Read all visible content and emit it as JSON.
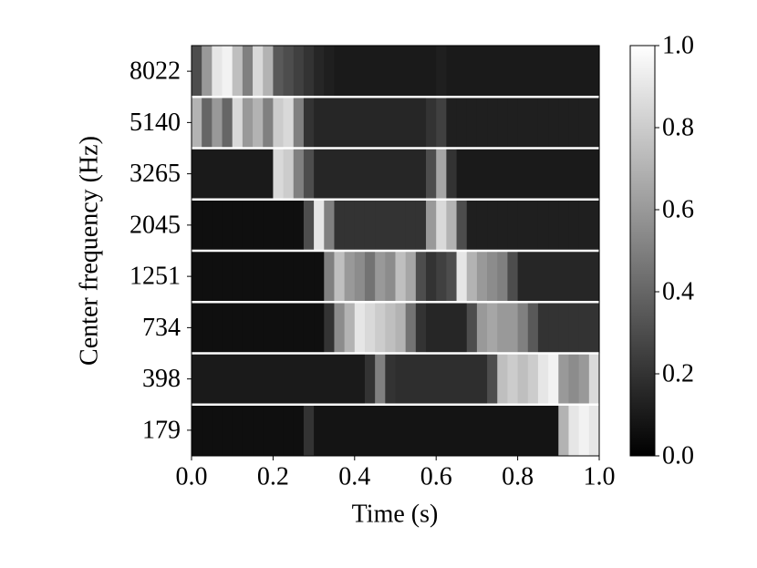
{
  "chart_data": {
    "type": "heatmap",
    "xlabel": "Time (s)",
    "ylabel": "Center frequency (Hz)",
    "categories": [
      "8022",
      "5140",
      "3265",
      "2045",
      "1251",
      "734",
      "398",
      "179"
    ],
    "bins": [
      0,
      0.025,
      0.05,
      0.075,
      0.1,
      0.125,
      0.15,
      0.175,
      0.2,
      0.225,
      0.25,
      0.275,
      0.3,
      0.325,
      0.35,
      0.375,
      0.4,
      0.425,
      0.45,
      0.475,
      0.5,
      0.525,
      0.55,
      0.575,
      0.6,
      0.625,
      0.65,
      0.675,
      0.7,
      0.725,
      0.75,
      0.775,
      0.8,
      0.825,
      0.85,
      0.875,
      0.9,
      0.925,
      0.95,
      0.975,
      1
    ],
    "values": [
      [
        0.3,
        0.6,
        0.9,
        0.95,
        0.75,
        0.5,
        0.85,
        0.7,
        0.35,
        0.3,
        0.25,
        0.2,
        0.15,
        0.12,
        0.1,
        0.1,
        0.1,
        0.1,
        0.1,
        0.1,
        0.1,
        0.1,
        0.1,
        0.1,
        0.12,
        0.1,
        0.1,
        0.1,
        0.1,
        0.1,
        0.1,
        0.1,
        0.1,
        0.1,
        0.1,
        0.1,
        0.1,
        0.1,
        0.1,
        0.1
      ],
      [
        0.7,
        0.4,
        0.6,
        0.4,
        0.85,
        0.6,
        0.7,
        0.5,
        0.8,
        0.85,
        0.5,
        0.2,
        0.15,
        0.15,
        0.15,
        0.15,
        0.15,
        0.15,
        0.15,
        0.15,
        0.15,
        0.15,
        0.15,
        0.2,
        0.25,
        0.12,
        0.12,
        0.12,
        0.12,
        0.12,
        0.12,
        0.12,
        0.12,
        0.12,
        0.12,
        0.12,
        0.12,
        0.12,
        0.12,
        0.12
      ],
      [
        0.1,
        0.1,
        0.1,
        0.1,
        0.1,
        0.1,
        0.1,
        0.1,
        0.85,
        0.8,
        0.5,
        0.3,
        0.15,
        0.15,
        0.15,
        0.15,
        0.15,
        0.15,
        0.15,
        0.15,
        0.15,
        0.15,
        0.15,
        0.3,
        0.65,
        0.2,
        0.1,
        0.1,
        0.1,
        0.1,
        0.1,
        0.1,
        0.1,
        0.1,
        0.1,
        0.1,
        0.1,
        0.1,
        0.1,
        0.1
      ],
      [
        0.06,
        0.06,
        0.06,
        0.06,
        0.06,
        0.06,
        0.06,
        0.06,
        0.06,
        0.06,
        0.06,
        0.3,
        0.9,
        0.5,
        0.2,
        0.2,
        0.2,
        0.2,
        0.2,
        0.2,
        0.2,
        0.2,
        0.2,
        0.6,
        0.85,
        0.7,
        0.3,
        0.12,
        0.12,
        0.12,
        0.12,
        0.12,
        0.12,
        0.12,
        0.12,
        0.12,
        0.12,
        0.12,
        0.12,
        0.12
      ],
      [
        0.06,
        0.06,
        0.06,
        0.06,
        0.06,
        0.06,
        0.06,
        0.06,
        0.06,
        0.06,
        0.06,
        0.06,
        0.06,
        0.5,
        0.75,
        0.6,
        0.55,
        0.45,
        0.6,
        0.55,
        0.75,
        0.65,
        0.3,
        0.2,
        0.25,
        0.3,
        0.9,
        0.7,
        0.6,
        0.55,
        0.5,
        0.3,
        0.15,
        0.15,
        0.15,
        0.15,
        0.15,
        0.15,
        0.15,
        0.15
      ],
      [
        0.06,
        0.06,
        0.06,
        0.06,
        0.06,
        0.06,
        0.06,
        0.06,
        0.06,
        0.06,
        0.06,
        0.06,
        0.06,
        0.2,
        0.55,
        0.7,
        0.9,
        0.85,
        0.8,
        0.75,
        0.7,
        0.45,
        0.2,
        0.15,
        0.15,
        0.15,
        0.15,
        0.3,
        0.6,
        0.65,
        0.6,
        0.6,
        0.5,
        0.35,
        0.2,
        0.2,
        0.2,
        0.2,
        0.2,
        0.2
      ],
      [
        0.1,
        0.1,
        0.1,
        0.1,
        0.1,
        0.1,
        0.1,
        0.1,
        0.1,
        0.1,
        0.1,
        0.1,
        0.1,
        0.1,
        0.1,
        0.1,
        0.1,
        0.2,
        0.5,
        0.2,
        0.18,
        0.18,
        0.18,
        0.18,
        0.18,
        0.18,
        0.18,
        0.18,
        0.18,
        0.3,
        0.75,
        0.8,
        0.75,
        0.8,
        0.9,
        0.95,
        0.6,
        0.55,
        0.6,
        0.85
      ],
      [
        0.06,
        0.06,
        0.06,
        0.06,
        0.06,
        0.06,
        0.06,
        0.06,
        0.06,
        0.06,
        0.06,
        0.2,
        0.08,
        0.08,
        0.08,
        0.08,
        0.08,
        0.08,
        0.08,
        0.08,
        0.08,
        0.08,
        0.08,
        0.08,
        0.08,
        0.08,
        0.08,
        0.08,
        0.08,
        0.08,
        0.08,
        0.08,
        0.08,
        0.08,
        0.08,
        0.08,
        0.7,
        0.9,
        0.95,
        0.9
      ]
    ],
    "xlim": [
      0,
      1
    ],
    "xticks": [
      {
        "value": 0,
        "label": "0.0"
      },
      {
        "value": 0.2,
        "label": "0.2"
      },
      {
        "value": 0.4,
        "label": "0.4"
      },
      {
        "value": 0.6,
        "label": "0.6"
      },
      {
        "value": 0.8,
        "label": "0.8"
      },
      {
        "value": 1,
        "label": "1.0"
      }
    ],
    "clim": [
      0,
      1
    ],
    "cticks": [
      {
        "value": 0,
        "label": "0.0"
      },
      {
        "value": 0.2,
        "label": "0.2"
      },
      {
        "value": 0.4,
        "label": "0.4"
      },
      {
        "value": 0.6,
        "label": "0.6"
      },
      {
        "value": 0.8,
        "label": "0.8"
      },
      {
        "value": 1,
        "label": "1.0"
      }
    ],
    "colormap": [
      "#000000",
      "#ffffff"
    ]
  }
}
